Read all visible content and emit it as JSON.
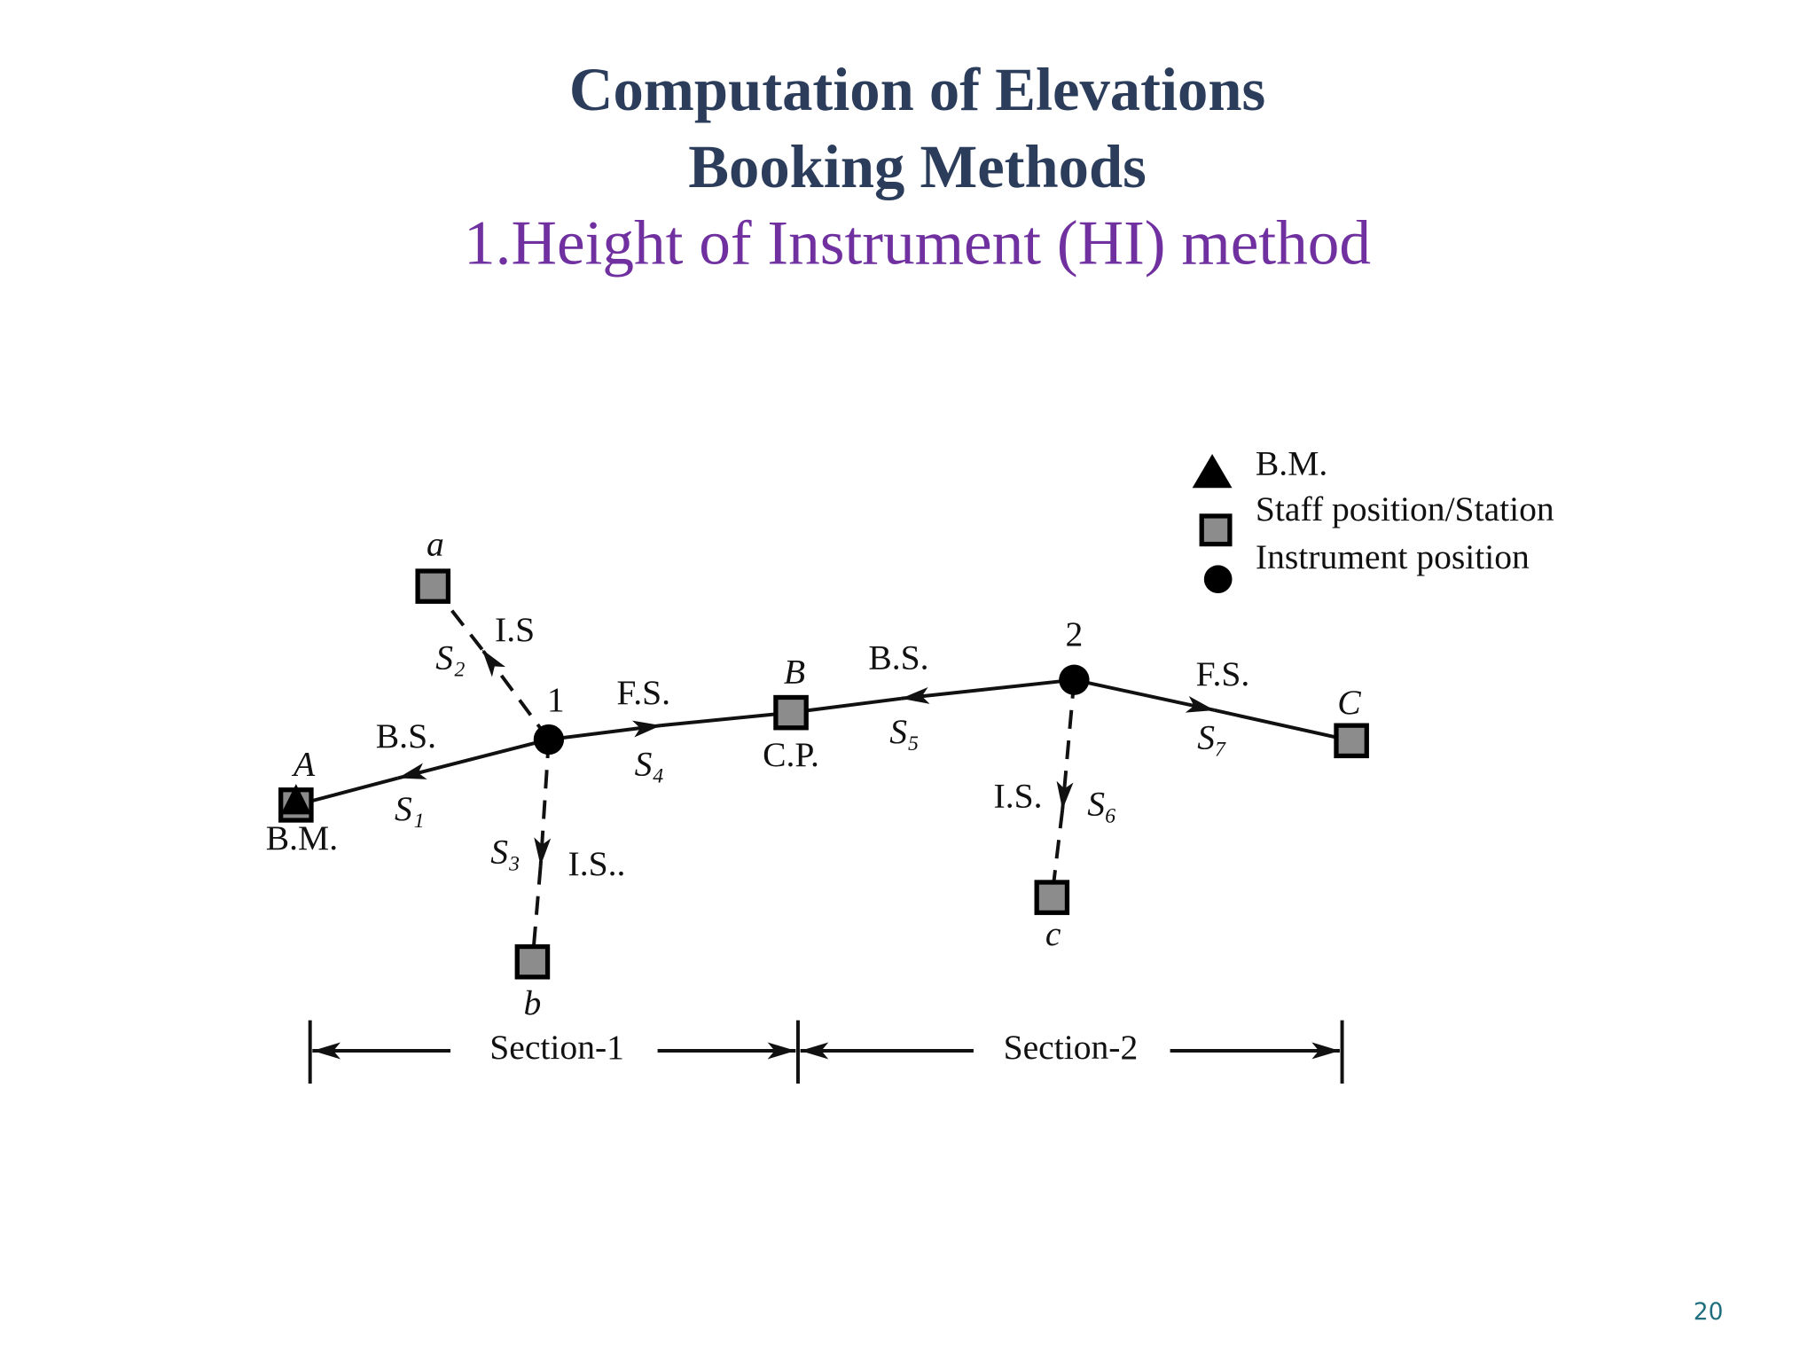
{
  "title": {
    "line1": "Computation of Elevations",
    "line2": "Booking Methods",
    "line3": "1.Height of Instrument (HI) method"
  },
  "legend": [
    "B.M.",
    "Staff position/Station",
    "Instrument position"
  ],
  "points": {
    "a": "a",
    "b": "b",
    "c": "c",
    "A": "A",
    "B": "B",
    "C": "C",
    "i1": "1",
    "i2": "2"
  },
  "labels": [
    "I.S",
    "S₂",
    "F.S.",
    "S₄",
    "C.P.",
    "B.S.",
    "S₅",
    "F.S.",
    "S₇",
    "I.S.",
    "S₆",
    "B.S.",
    "S₁",
    "B.M.",
    "S₃",
    "I.S.."
  ],
  "sections": [
    "Section-1",
    "Section-2"
  ],
  "page_number": "20"
}
